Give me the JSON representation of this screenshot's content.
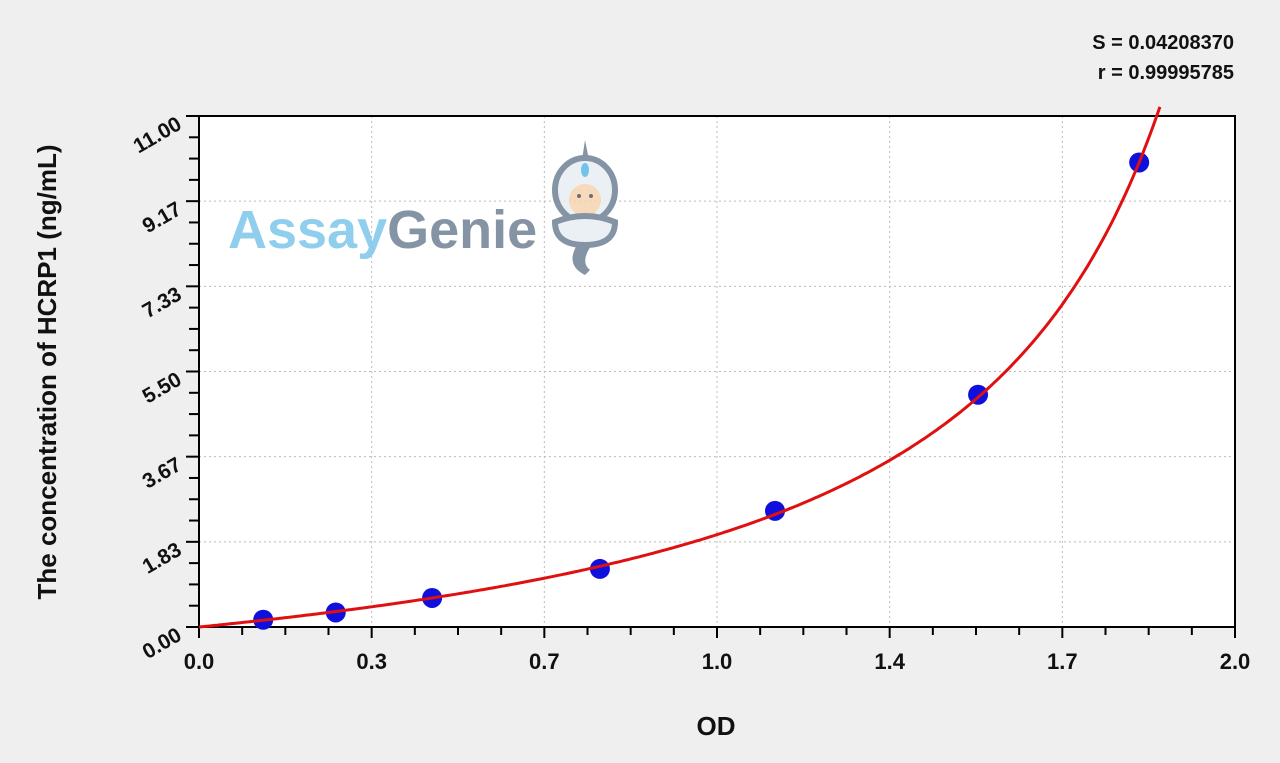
{
  "stats": {
    "s": "S = 0.04208370",
    "r": "r = 0.99995785"
  },
  "watermark": {
    "text_a": "Assay",
    "text_b": "Genie"
  },
  "chart_data": {
    "type": "scatter",
    "title": "",
    "xlabel": "OD",
    "ylabel": "The concentration of HCRP1 (ng/mL)",
    "xlim": [
      0,
      2.0
    ],
    "ylim": [
      0,
      11.0
    ],
    "x_ticks": [
      "0.0",
      "0.3",
      "0.7",
      "1.0",
      "1.4",
      "1.7",
      "2.0"
    ],
    "y_ticks": [
      "0.00",
      "1.83",
      "3.67",
      "5.50",
      "7.33",
      "9.17",
      "11.00"
    ],
    "grid": true,
    "series": [
      {
        "type": "scatter",
        "x": [
          0.124,
          0.264,
          0.45,
          0.774,
          1.112,
          1.504,
          1.815
        ],
        "y": [
          0.156,
          0.313,
          0.625,
          1.25,
          2.5,
          5.0,
          10.0
        ],
        "color": "#1010dd"
      },
      {
        "type": "line",
        "fit": true,
        "color": "#e01010"
      }
    ]
  }
}
